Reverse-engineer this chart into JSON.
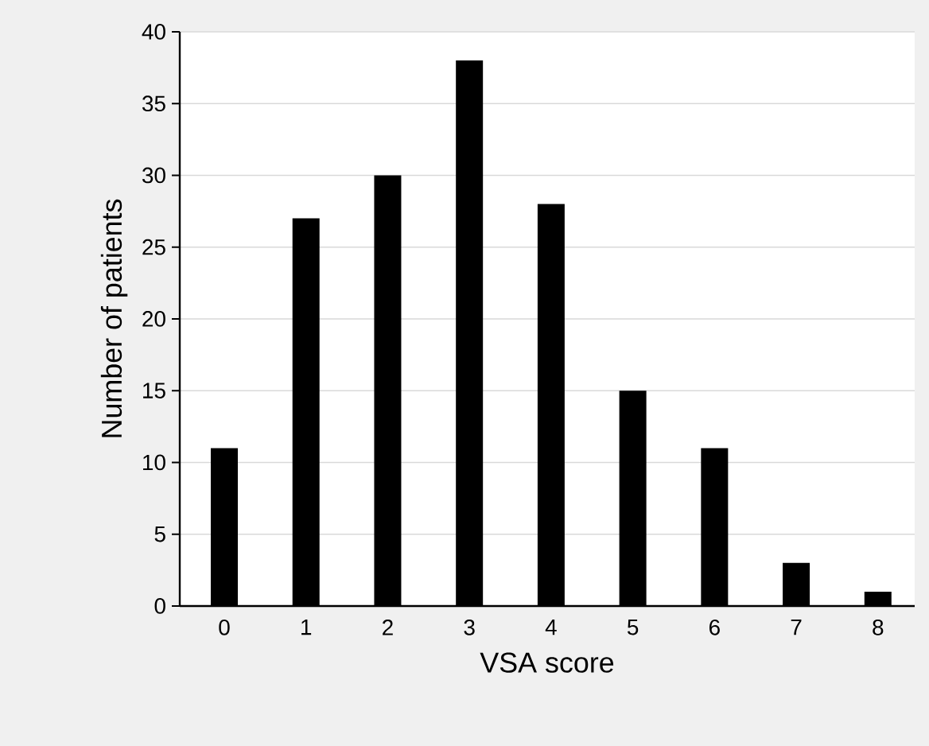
{
  "chart_data": {
    "type": "bar",
    "xlabel": "VSA score",
    "ylabel": "Number of patients",
    "categories": [
      "0",
      "1",
      "2",
      "3",
      "4",
      "5",
      "6",
      "7",
      "8"
    ],
    "values": [
      11,
      27,
      30,
      38,
      28,
      15,
      11,
      3,
      1
    ],
    "color": "#000000",
    "ylim": [
      0,
      40
    ],
    "yticks": [
      0,
      5,
      10,
      15,
      20,
      25,
      30,
      35,
      40
    ],
    "grid": "y"
  }
}
